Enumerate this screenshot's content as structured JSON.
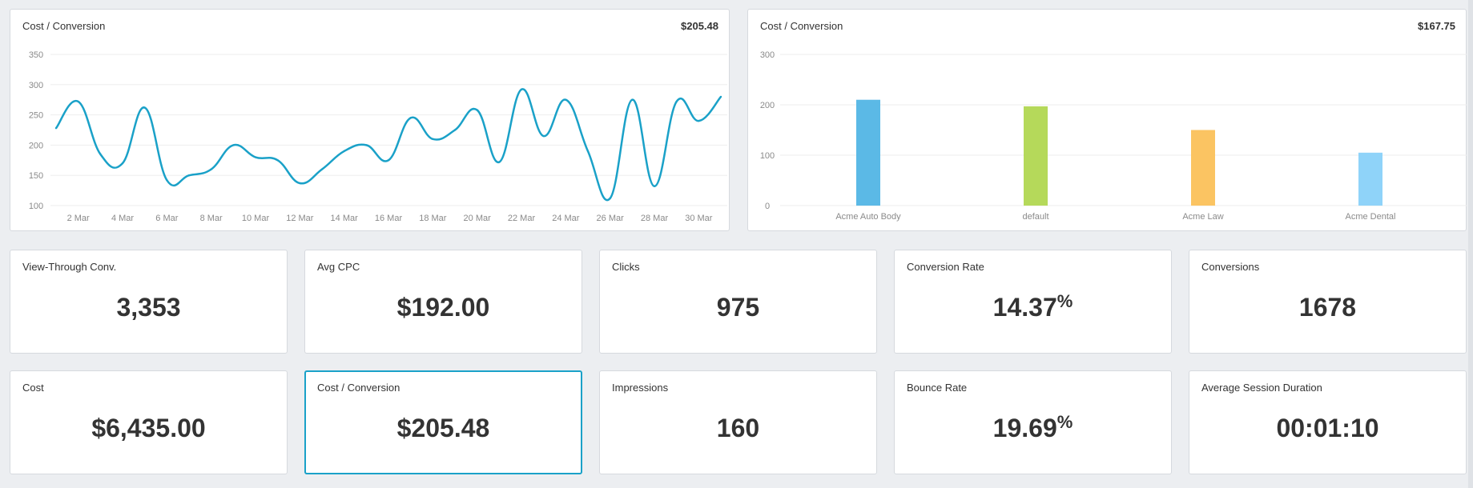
{
  "line_chart_card": {
    "title": "Cost / Conversion",
    "value": "$205.48"
  },
  "bar_chart_card": {
    "title": "Cost / Conversion",
    "value": "$167.75"
  },
  "chart_data": [
    {
      "type": "line",
      "title": "Cost / Conversion",
      "x": [
        "1 Mar",
        "2 Mar",
        "3 Mar",
        "4 Mar",
        "5 Mar",
        "6 Mar",
        "7 Mar",
        "8 Mar",
        "9 Mar",
        "10 Mar",
        "11 Mar",
        "12 Mar",
        "13 Mar",
        "14 Mar",
        "15 Mar",
        "16 Mar",
        "17 Mar",
        "18 Mar",
        "19 Mar",
        "20 Mar",
        "21 Mar",
        "22 Mar",
        "23 Mar",
        "24 Mar",
        "25 Mar",
        "26 Mar",
        "27 Mar",
        "28 Mar",
        "29 Mar",
        "30 Mar",
        "31 Mar"
      ],
      "x_tick_labels": [
        "2 Mar",
        "4 Mar",
        "6 Mar",
        "8 Mar",
        "10 Mar",
        "12 Mar",
        "14 Mar",
        "16 Mar",
        "18 Mar",
        "20 Mar",
        "22 Mar",
        "24 Mar",
        "26 Mar",
        "28 Mar",
        "30 Mar"
      ],
      "series": [
        {
          "values": [
            228,
            272,
            185,
            170,
            262,
            142,
            150,
            160,
            200,
            180,
            175,
            137,
            160,
            190,
            200,
            175,
            245,
            210,
            225,
            258,
            172,
            292,
            215,
            275,
            190,
            112,
            275,
            132,
            272,
            240,
            280
          ]
        }
      ],
      "yticks": [
        100,
        150,
        200,
        250,
        300,
        350
      ],
      "ylim": [
        100,
        350
      ],
      "grid": true,
      "color": "#1aa1c8"
    },
    {
      "type": "bar",
      "title": "Cost / Conversion",
      "categories": [
        "Acme Auto Body",
        "default",
        "Acme Law",
        "Acme Dental"
      ],
      "values": [
        210,
        197,
        150,
        105
      ],
      "colors": [
        "#5bb9e6",
        "#b5d95a",
        "#fbc462",
        "#8fd3f9"
      ],
      "yticks": [
        0,
        100,
        200,
        300
      ],
      "ylim": [
        0,
        300
      ],
      "grid": true
    }
  ],
  "metrics": [
    {
      "title": "View-Through Conv.",
      "value": "3,353",
      "suffix": ""
    },
    {
      "title": "Avg CPC",
      "value": "$192.00",
      "suffix": ""
    },
    {
      "title": "Clicks",
      "value": "975",
      "suffix": ""
    },
    {
      "title": "Conversion Rate",
      "value": "14.37",
      "suffix": "%"
    },
    {
      "title": "Conversions",
      "value": "1678",
      "suffix": ""
    },
    {
      "title": "Cost",
      "value": "$6,435.00",
      "suffix": ""
    },
    {
      "title": "Cost / Conversion",
      "value": "$205.48",
      "suffix": ""
    },
    {
      "title": "Impressions",
      "value": "160",
      "suffix": ""
    },
    {
      "title": "Bounce Rate",
      "value": "19.69",
      "suffix": "%"
    },
    {
      "title": "Average Session Duration",
      "value": "00:01:10",
      "suffix": ""
    }
  ],
  "selected_metric_index": 6
}
